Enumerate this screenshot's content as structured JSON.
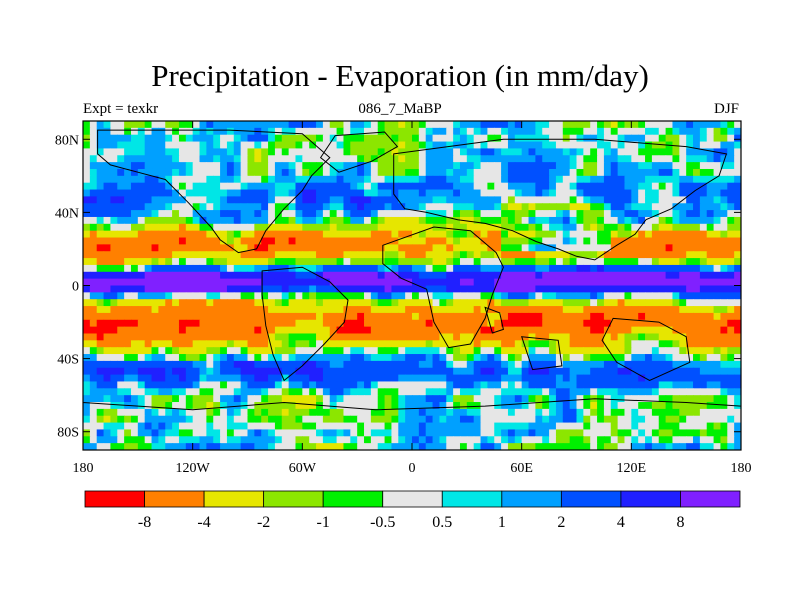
{
  "chart_data": {
    "type": "heatmap",
    "title": "Precipitation - Evaporation (in mm/day)",
    "subtitle_left": "Expt = texkr",
    "subtitle_center": "086_7_MaBP",
    "subtitle_right": "DJF",
    "x_range": [
      -180,
      180
    ],
    "y_range": [
      -90,
      90
    ],
    "x_ticks": [
      {
        "value": -180,
        "label": "180"
      },
      {
        "value": -120,
        "label": "120W"
      },
      {
        "value": -60,
        "label": "60W"
      },
      {
        "value": 0,
        "label": "0"
      },
      {
        "value": 60,
        "label": "60E"
      },
      {
        "value": 120,
        "label": "120E"
      },
      {
        "value": 180,
        "label": "180"
      }
    ],
    "y_ticks": [
      {
        "value": 80,
        "label": "80N"
      },
      {
        "value": 40,
        "label": "40N"
      },
      {
        "value": 0,
        "label": "0"
      },
      {
        "value": -40,
        "label": "40S"
      },
      {
        "value": -80,
        "label": "80S"
      }
    ],
    "colorbar": {
      "colors": [
        "#ff0000",
        "#ff8000",
        "#e6e600",
        "#8ce600",
        "#00f000",
        "#e6e6e6",
        "#00e6e6",
        "#00a0ff",
        "#0050ff",
        "#2020ff",
        "#8020ff"
      ],
      "labels": [
        "-8",
        "-4",
        "-2",
        "-1",
        "-0.5",
        "0.5",
        "1",
        "2",
        "4",
        "8"
      ]
    }
  }
}
